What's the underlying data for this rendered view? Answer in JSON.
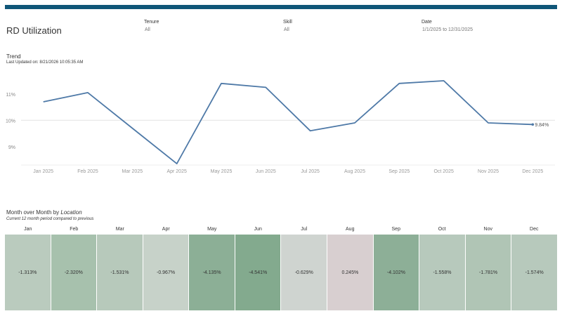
{
  "header": {
    "title": "RD Utilization"
  },
  "filters": {
    "tenure": {
      "label": "Tenure",
      "value": "All"
    },
    "skill": {
      "label": "Skill",
      "value": "All"
    },
    "date": {
      "label": "Date",
      "value": "1/1/2025 to 12/31/2025"
    }
  },
  "trend": {
    "title": "Trend",
    "updated": "Last Updated on: 8/21/2026 10:05:35 AM"
  },
  "chart_data": {
    "type": "line",
    "categories": [
      "Jan 2025",
      "Feb 2025",
      "Mar 2025",
      "Apr 2025",
      "May 2025",
      "Jun 2025",
      "Jul 2025",
      "Aug 2025",
      "Sep 2025",
      "Oct 2025",
      "Nov 2025",
      "Dec 2025"
    ],
    "values": [
      10.7,
      11.05,
      9.7,
      8.35,
      11.4,
      11.25,
      9.6,
      9.9,
      11.4,
      11.5,
      9.9,
      9.84
    ],
    "y_ticks": [
      "9%",
      "10%",
      "11%"
    ],
    "y_tick_values": [
      9,
      10,
      11
    ],
    "ylim": [
      8.3,
      11.9
    ],
    "reference_line": 10,
    "end_label": "9.84%",
    "line_color": "#4e79a7"
  },
  "month_over_month": {
    "title_prefix": "Month over Month by",
    "title_field": "Location",
    "subtitle": "Current 12  month period compared to previous",
    "months": [
      "Jan",
      "Feb",
      "Mar",
      "Apr",
      "May",
      "Jun",
      "Jul",
      "Aug",
      "Sep",
      "Oct",
      "Nov",
      "Dec"
    ],
    "values": [
      "-1.313%",
      "-2.320%",
      "-1.531%",
      "-0.967%",
      "-4.135%",
      "-4.541%",
      "-0.629%",
      "0.245%",
      "-4.102%",
      "-1.558%",
      "-1.781%",
      "-1.574%"
    ],
    "colors": [
      "#bacbbe",
      "#a7c1ad",
      "#b7c9bb",
      "#c7d2c9",
      "#8caf96",
      "#83aa8e",
      "#cfd4d0",
      "#d8cfd0",
      "#8daf97",
      "#b7c9bc",
      "#b0c5b5",
      "#b7c9bc"
    ]
  }
}
